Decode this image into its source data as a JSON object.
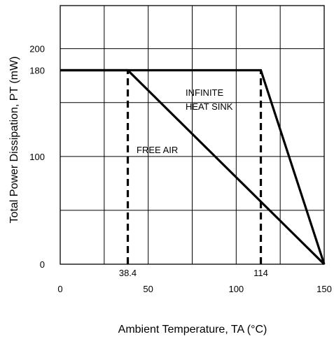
{
  "chart_data": {
    "type": "line",
    "title": "",
    "xlabel": "Ambient Temperature, TA (°C)",
    "ylabel": "Total Power Dissipation, PT (mW)",
    "xlim": [
      0,
      150
    ],
    "ylim": [
      0,
      240
    ],
    "x_ticks": [
      0,
      50,
      100,
      150
    ],
    "y_ticks": [
      0,
      100,
      180,
      200
    ],
    "x_grid": [
      25,
      50,
      75,
      100,
      125
    ],
    "y_grid": [
      50,
      100,
      150,
      200
    ],
    "grid": true,
    "series": [
      {
        "name": "INFINITE HEAT SINK",
        "x": [
          0,
          114,
          150
        ],
        "y": [
          180,
          180,
          0
        ]
      },
      {
        "name": "FREE AIR",
        "x": [
          0,
          38.4,
          150
        ],
        "y": [
          180,
          180,
          0
        ]
      }
    ],
    "reference_lines": [
      {
        "x": 38.4,
        "y": [
          0,
          180
        ],
        "style": "dashed",
        "label": "38.4"
      },
      {
        "x": 114,
        "y": [
          0,
          180
        ],
        "style": "dashed",
        "label": "114"
      }
    ],
    "colors": {
      "lines": "#000000",
      "grid": "#000000"
    }
  }
}
